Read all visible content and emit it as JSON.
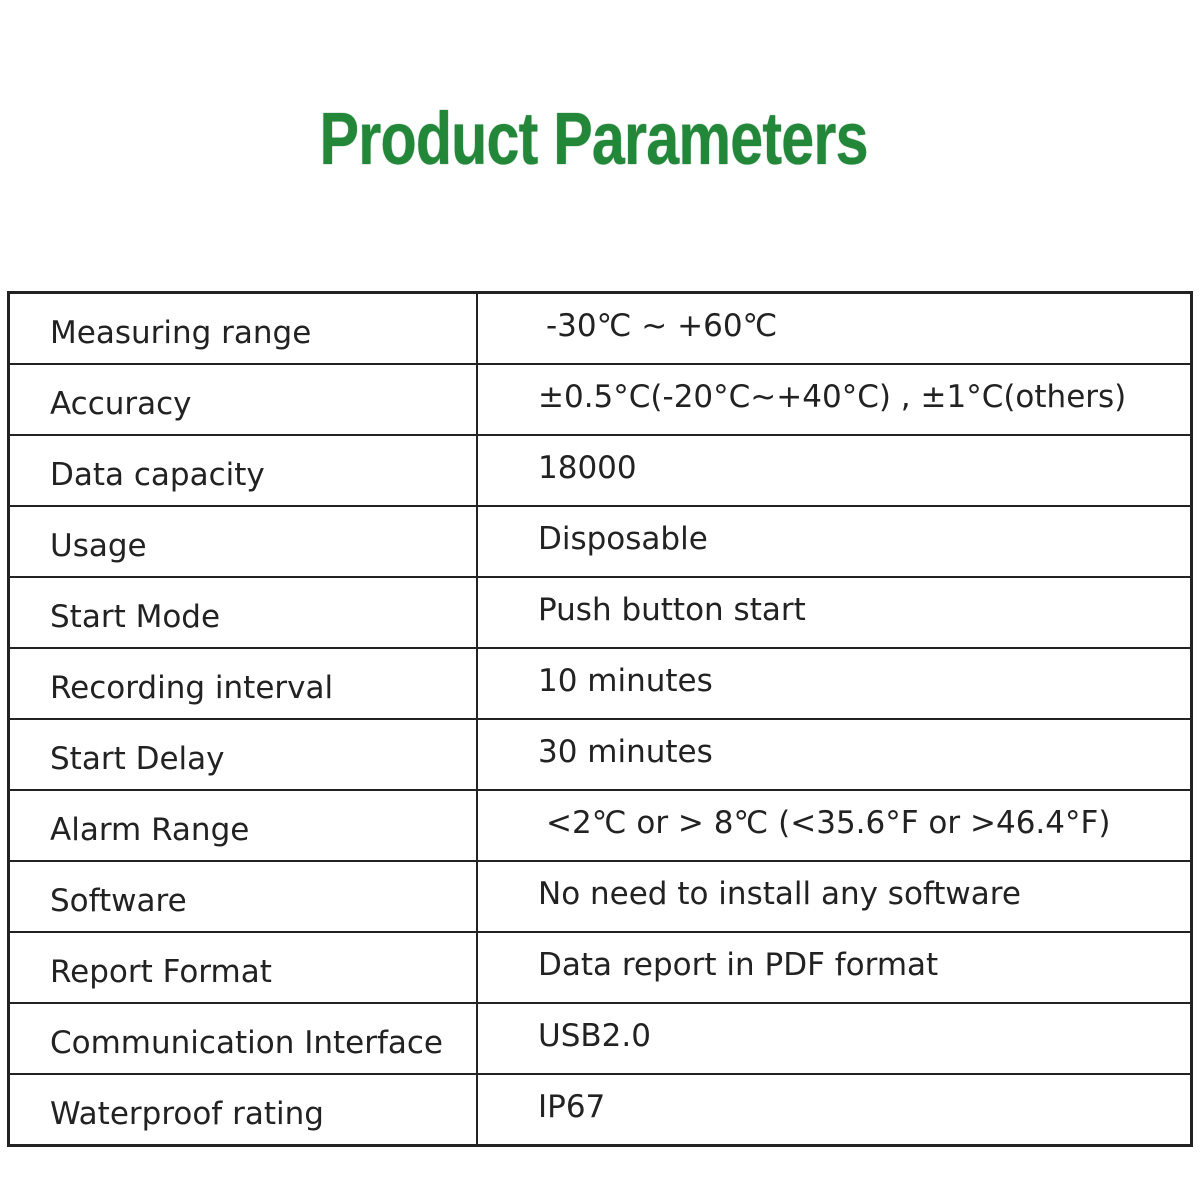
{
  "title": "Product Parameters",
  "colors": {
    "title": "#23873a",
    "border": "#222222"
  },
  "rows": [
    {
      "label": "Measuring range",
      "value": "-30℃ ~ +60℃"
    },
    {
      "label": "Accuracy",
      "value": "±0.5°C(-20°C~+40°C) , ±1°C(others)"
    },
    {
      "label": "Data capacity",
      "value": "18000"
    },
    {
      "label": "Usage",
      "value": "Disposable"
    },
    {
      "label": "Start Mode",
      "value": "Push button start"
    },
    {
      "label": "Recording interval",
      "value": "10 minutes"
    },
    {
      "label": "Start Delay",
      "value": "30 minutes"
    },
    {
      "label": "Alarm Range",
      "value": "<2℃ or > 8℃  (<35.6°F or >46.4°F)"
    },
    {
      "label": "Software",
      "value": "No need to install any software"
    },
    {
      "label": "Report Format",
      "value": "Data report in PDF format"
    },
    {
      "label": "Communication Interface",
      "value": "USB2.0"
    },
    {
      "label": "Waterproof rating",
      "value": "IP67"
    }
  ]
}
